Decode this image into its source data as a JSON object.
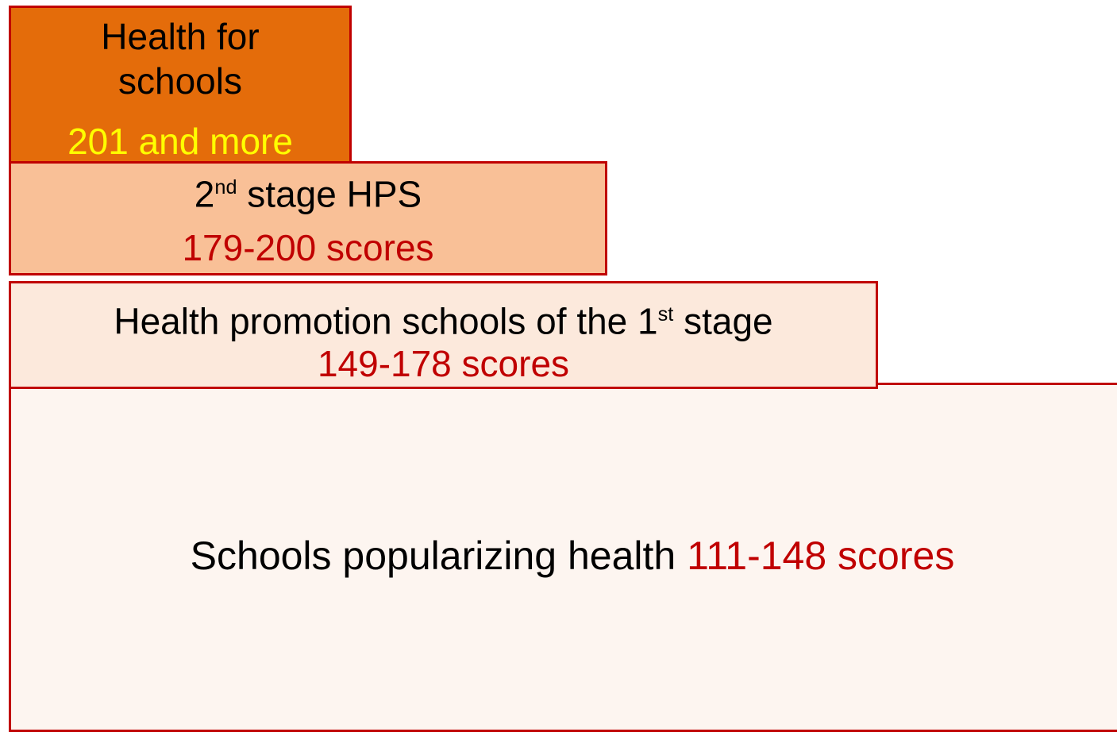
{
  "levels": [
    {
      "title": "Health for schools",
      "range": "201 and more"
    },
    {
      "title_prefix": "2",
      "title_sup": "nd",
      "title_suffix": " stage HPS",
      "range": "179-200 scores"
    },
    {
      "title_prefix": "Health promotion schools of the 1",
      "title_sup": "st",
      "title_suffix": " stage",
      "range": "149-178 scores"
    },
    {
      "title": "Schools popularizing health",
      "range": "111-148 scores"
    }
  ]
}
